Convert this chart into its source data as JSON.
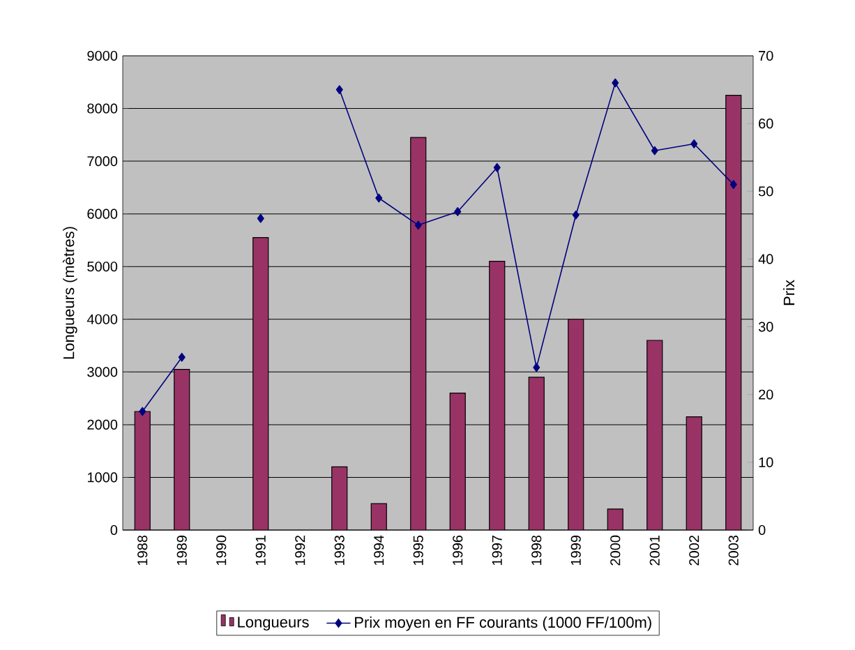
{
  "chart_data": {
    "type": "bar",
    "categories": [
      "1988",
      "1989",
      "1990",
      "1991",
      "1992",
      "1993",
      "1994",
      "1995",
      "1996",
      "1997",
      "1998",
      "1999",
      "2000",
      "2001",
      "2002",
      "2003"
    ],
    "series": [
      {
        "name": "Longueurs",
        "color": "#993366",
        "values": [
          2250,
          3050,
          null,
          5550,
          null,
          1200,
          500,
          7450,
          2600,
          5100,
          2900,
          4000,
          400,
          3600,
          2150,
          8250
        ]
      },
      {
        "name": "Prix moyen en FF courants (1000 FF/100m)",
        "type": "line",
        "axis": "y2",
        "color": "#000080",
        "values": [
          17.5,
          25.5,
          null,
          46,
          null,
          65,
          49,
          45,
          47,
          53.5,
          24,
          46.5,
          66,
          56,
          57,
          51
        ]
      }
    ],
    "ylabel": "Longueurs (mètres)",
    "y2label": "Prix",
    "ylim": [
      0,
      9000
    ],
    "yticks": [
      0,
      1000,
      2000,
      3000,
      4000,
      5000,
      6000,
      7000,
      8000,
      9000
    ],
    "y2lim": [
      0,
      70
    ],
    "y2ticks": [
      0,
      10,
      20,
      30,
      40,
      50,
      60,
      70
    ],
    "grid": "y",
    "legend": "bottom",
    "marker": "diamond",
    "line_style": "solid"
  }
}
